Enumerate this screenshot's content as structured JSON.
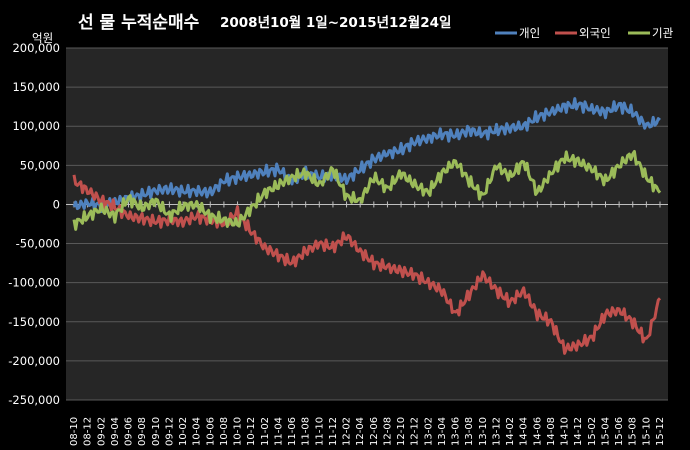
{
  "chart_data": {
    "type": "line",
    "title_main": "선 물 누적순매수",
    "title_sub": "2008년10월 1일~2015년12월24일",
    "ylabel": "억원",
    "xlabel": "",
    "ylim": [
      -250000,
      200000
    ],
    "yticks": [
      "200,000",
      "150,000",
      "100,000",
      "50,000",
      "0",
      "-50,000",
      "-100,000",
      "-150,000",
      "-200,000",
      "-250,000"
    ],
    "ytick_values": [
      200000,
      150000,
      100000,
      50000,
      0,
      -50000,
      -100000,
      -150000,
      -200000,
      -250000
    ],
    "grid": true,
    "legend_position": "top-right",
    "colors": {
      "background": "#000000",
      "plot_background": "#262626",
      "grid": "#595959",
      "text": "#ffffff"
    },
    "x": [
      "08-10",
      "08-12",
      "09-02",
      "09-04",
      "09-06",
      "09-08",
      "09-10",
      "09-12",
      "10-02",
      "10-04",
      "10-06",
      "10-08",
      "10-10",
      "10-12",
      "11-02",
      "11-04",
      "11-06",
      "11-08",
      "11-10",
      "11-12",
      "12-02",
      "12-04",
      "12-06",
      "12-08",
      "12-10",
      "12-12",
      "13-02",
      "13-04",
      "13-06",
      "13-08",
      "13-10",
      "13-12",
      "14-02",
      "14-04",
      "14-06",
      "14-08",
      "14-10",
      "14-12",
      "15-02",
      "15-04",
      "15-06",
      "15-08",
      "15-10",
      "15-12"
    ],
    "series": [
      {
        "name": "개인",
        "color": "#4f81bd",
        "values": [
          -3000,
          2000,
          -2000,
          3000,
          8000,
          12000,
          18000,
          20000,
          17000,
          17000,
          15000,
          30000,
          35000,
          38000,
          42000,
          45000,
          30000,
          40000,
          35000,
          38000,
          32000,
          45000,
          58000,
          65000,
          70000,
          80000,
          85000,
          90000,
          88000,
          95000,
          90000,
          95000,
          98000,
          100000,
          112000,
          118000,
          125000,
          128000,
          122000,
          118000,
          127000,
          118000,
          100000,
          108000
        ]
      },
      {
        "name": "외국인",
        "color": "#c0504d",
        "values": [
          30000,
          18000,
          5000,
          -3000,
          -15000,
          -18000,
          -22000,
          -20000,
          -22000,
          -15000,
          -20000,
          -25000,
          -10000,
          -35000,
          -55000,
          -65000,
          -75000,
          -60000,
          -50000,
          -55000,
          -40000,
          -60000,
          -75000,
          -80000,
          -85000,
          -90000,
          -100000,
          -110000,
          -140000,
          -115000,
          -90000,
          -110000,
          -125000,
          -110000,
          -140000,
          -150000,
          -185000,
          -180000,
          -170000,
          -140000,
          -135000,
          -150000,
          -175000,
          -120000
        ]
      },
      {
        "name": "기관",
        "color": "#9bbb59",
        "values": [
          -25000,
          -15000,
          -5000,
          -15000,
          8000,
          -5000,
          5000,
          -15000,
          -2000,
          0,
          -15000,
          -20000,
          -25000,
          -5000,
          15000,
          25000,
          35000,
          40000,
          25000,
          45000,
          10000,
          5000,
          35000,
          20000,
          40000,
          25000,
          15000,
          40000,
          55000,
          30000,
          10000,
          50000,
          35000,
          55000,
          15000,
          40000,
          60000,
          55000,
          45000,
          30000,
          50000,
          65000,
          35000,
          15000
        ]
      }
    ]
  }
}
